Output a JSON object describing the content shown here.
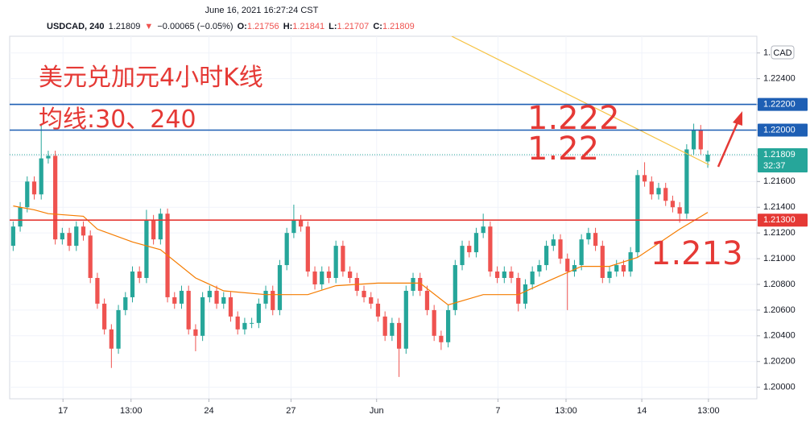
{
  "chart_data": {
    "type": "candlestick",
    "header": {
      "date": "June 16, 2021 16:27:24 CST",
      "symbol": "USDCAD, 240",
      "last": "1.21809",
      "arrow": "▼",
      "change": "−0.00065 (−0.05%)",
      "ohlc": [
        {
          "key": "O:",
          "value": "1.21756"
        },
        {
          "key": "H:",
          "value": "1.21841"
        },
        {
          "key": "L:",
          "value": "1.21707"
        },
        {
          "key": "C:",
          "value": "1.21809"
        }
      ]
    },
    "currency_button": "CAD",
    "annotations": [
      {
        "text": "美元兑加元4小时K线"
      },
      {
        "text": "均线:30、240"
      },
      {
        "text": "1.222"
      },
      {
        "text": "1.22"
      },
      {
        "text": "1.213"
      }
    ],
    "up_color": "#26a69a",
    "down_color": "#ef5350",
    "xlim": [
      -0.5,
      106
    ],
    "xticks": [
      {
        "value": 7.1,
        "label": "17"
      },
      {
        "value": 16.8,
        "label": "13:00"
      },
      {
        "value": 27.9,
        "label": "24"
      },
      {
        "value": 39.6,
        "label": "27"
      },
      {
        "value": 51.8,
        "label": "Jun"
      },
      {
        "value": 69.1,
        "label": "7"
      },
      {
        "value": 78.8,
        "label": "13:00"
      },
      {
        "value": 89.6,
        "label": "14"
      },
      {
        "value": 99.1,
        "label": "13:00"
      }
    ],
    "ylim": [
      1.1991,
      1.2273
    ],
    "yticks": [
      {
        "value": 1.2,
        "label": "1.20000"
      },
      {
        "value": 1.202,
        "label": "1.20200"
      },
      {
        "value": 1.204,
        "label": "1.20400"
      },
      {
        "value": 1.206,
        "label": "1.20600"
      },
      {
        "value": 1.208,
        "label": "1.20800"
      },
      {
        "value": 1.21,
        "label": "1.21000"
      },
      {
        "value": 1.212,
        "label": "1.21200"
      },
      {
        "value": 1.214,
        "label": "1.21400"
      },
      {
        "value": 1.216,
        "label": "1.21600"
      },
      {
        "value": 1.218,
        "label": "1.21800"
      },
      {
        "value": 1.22,
        "label": "1.22000"
      },
      {
        "value": 1.222,
        "label": "1.22200"
      },
      {
        "value": 1.224,
        "label": "1.22400"
      },
      {
        "value": 1.226,
        "label": "1.2"
      }
    ],
    "grid": true,
    "price_lines": [
      {
        "value": 1.222,
        "label": "1.22200",
        "color": "#1e5fb4",
        "style": "solid"
      },
      {
        "value": 1.22,
        "label": "1.22000",
        "color": "#1e5fb4",
        "style": "solid"
      },
      {
        "value": 1.213,
        "label": "1.21300",
        "color": "#e53935",
        "style": "solid"
      },
      {
        "value": 1.21809,
        "label": "1.21809",
        "countdown": "32:37",
        "color": "#26a69a",
        "style": "dotted"
      }
    ],
    "open": [
      1.211,
      1.2125,
      1.214,
      1.216,
      1.215,
      1.2178,
      1.218,
      1.2115,
      1.212,
      1.211,
      1.2125,
      1.2118,
      1.2085,
      1.2065,
      1.2045,
      1.203,
      1.206,
      1.207,
      1.209,
      1.2085,
      1.213,
      1.2115,
      1.2135,
      1.207,
      1.2065,
      1.2075,
      1.2045,
      1.204,
      1.207,
      1.2075,
      1.2065,
      1.207,
      1.2055,
      1.2045,
      1.205,
      1.205,
      1.2065,
      1.2075,
      1.206,
      1.2095,
      1.212,
      1.213,
      1.2125,
      1.209,
      1.208,
      1.209,
      1.2085,
      1.211,
      1.209,
      1.2085,
      1.2075,
      1.207,
      1.2065,
      1.2055,
      1.204,
      1.205,
      1.203,
      1.2075,
      1.2085,
      1.2075,
      1.206,
      1.204,
      1.2035,
      1.206,
      1.2095,
      1.211,
      1.2105,
      1.212,
      1.2125,
      1.209,
      1.2085,
      1.209,
      1.2085,
      1.2065,
      1.208,
      1.209,
      1.2095,
      1.211,
      1.2115,
      1.21,
      1.209,
      1.2095,
      1.2115,
      1.212,
      1.211,
      1.2085,
      1.209,
      1.2095,
      1.209,
      1.2105,
      1.2165,
      1.216,
      1.215,
      1.2155,
      1.2145,
      1.214,
      1.2135,
      1.2185,
      1.22,
      1.21756
    ],
    "high": [
      1.2129,
      1.2144,
      1.2164,
      1.2164,
      1.2204,
      1.2184,
      1.2184,
      1.2124,
      1.2124,
      1.2129,
      1.2129,
      1.2122,
      1.2089,
      1.2069,
      1.2049,
      1.2064,
      1.2074,
      1.2094,
      1.2094,
      1.2138,
      1.2134,
      1.2139,
      1.2139,
      1.2074,
      1.2079,
      1.2079,
      1.2049,
      1.2074,
      1.2079,
      1.2079,
      1.2074,
      1.2074,
      1.2059,
      1.2054,
      1.2054,
      1.2069,
      1.2079,
      1.2079,
      1.2099,
      1.2124,
      1.2142,
      1.2134,
      1.2129,
      1.2094,
      1.2094,
      1.2094,
      1.2114,
      1.2114,
      1.2094,
      1.2089,
      1.2079,
      1.2074,
      1.2069,
      1.2059,
      1.2054,
      1.2054,
      1.2079,
      1.2089,
      1.2089,
      1.2079,
      1.2064,
      1.2044,
      1.2064,
      1.2099,
      1.2114,
      1.2114,
      1.2124,
      1.2135,
      1.2129,
      1.2094,
      1.2094,
      1.2094,
      1.2089,
      1.2084,
      1.2094,
      1.2099,
      1.2114,
      1.2119,
      1.2119,
      1.2104,
      1.2099,
      1.2119,
      1.2124,
      1.2124,
      1.2114,
      1.2094,
      1.2099,
      1.2099,
      1.2109,
      1.2169,
      1.2175,
      1.2164,
      1.2159,
      1.2159,
      1.2149,
      1.2144,
      1.2189,
      1.2205,
      1.2204,
      1.21841
    ],
    "low": [
      1.2106,
      1.2121,
      1.2136,
      1.2146,
      1.2146,
      1.2174,
      1.2111,
      1.2111,
      1.2106,
      1.2106,
      1.2114,
      1.2081,
      1.2061,
      1.2041,
      1.2015,
      1.2026,
      1.2056,
      1.2066,
      1.2081,
      1.2081,
      1.2111,
      1.2111,
      1.2066,
      1.2061,
      1.2061,
      1.2041,
      1.2028,
      1.2036,
      1.2066,
      1.2061,
      1.2061,
      1.2051,
      1.2041,
      1.2041,
      1.2046,
      1.2046,
      1.2061,
      1.2056,
      1.2056,
      1.2091,
      1.2116,
      1.2121,
      1.2086,
      1.2076,
      1.2076,
      1.2081,
      1.2081,
      1.2086,
      1.2081,
      1.2071,
      1.2066,
      1.2061,
      1.2051,
      1.2036,
      1.2036,
      1.2008,
      1.2026,
      1.2071,
      1.2071,
      1.2056,
      1.2036,
      1.2029,
      1.2031,
      1.2056,
      1.2091,
      1.2101,
      1.2101,
      1.2116,
      1.2086,
      1.2081,
      1.2081,
      1.2081,
      1.2059,
      1.2061,
      1.2076,
      1.2086,
      1.2091,
      1.2106,
      1.2096,
      1.206,
      1.2086,
      1.2091,
      1.2111,
      1.2106,
      1.2081,
      1.2081,
      1.2086,
      1.2086,
      1.2086,
      1.2101,
      1.2156,
      1.2146,
      1.2146,
      1.2141,
      1.2136,
      1.2128,
      1.2131,
      1.2181,
      1.2181,
      1.21707
    ],
    "close": [
      1.2125,
      1.214,
      1.216,
      1.215,
      1.2178,
      1.218,
      1.2115,
      1.212,
      1.211,
      1.2125,
      1.2118,
      1.2085,
      1.2065,
      1.2045,
      1.203,
      1.206,
      1.207,
      1.209,
      1.2085,
      1.213,
      1.2115,
      1.2135,
      1.207,
      1.2065,
      1.2075,
      1.2045,
      1.204,
      1.207,
      1.2075,
      1.2065,
      1.207,
      1.2055,
      1.2045,
      1.205,
      1.205,
      1.2065,
      1.2075,
      1.206,
      1.2095,
      1.212,
      1.213,
      1.2125,
      1.209,
      1.208,
      1.209,
      1.2085,
      1.211,
      1.209,
      1.2085,
      1.2075,
      1.207,
      1.2065,
      1.2055,
      1.204,
      1.205,
      1.203,
      1.2075,
      1.2085,
      1.2075,
      1.206,
      1.204,
      1.2035,
      1.206,
      1.2095,
      1.211,
      1.2105,
      1.212,
      1.2125,
      1.209,
      1.2085,
      1.209,
      1.2085,
      1.2065,
      1.208,
      1.209,
      1.2095,
      1.211,
      1.2115,
      1.21,
      1.209,
      1.2095,
      1.2115,
      1.212,
      1.211,
      1.2085,
      1.209,
      1.2095,
      1.209,
      1.2105,
      1.2165,
      1.216,
      1.215,
      1.2155,
      1.2145,
      1.214,
      1.2135,
      1.2185,
      1.22,
      1.2185,
      1.21809
    ],
    "moving_averages": [
      {
        "color": "#f57c00",
        "x": [
          0,
          3,
          5,
          10,
          12,
          17,
          21,
          26,
          30,
          36,
          42,
          46,
          52,
          58,
          62,
          67,
          72,
          76,
          81,
          85,
          89,
          95,
          99
        ],
        "values": [
          1.2141,
          1.2138,
          1.2135,
          1.2133,
          1.2123,
          1.2113,
          1.2107,
          1.2085,
          1.2075,
          1.2072,
          1.2072,
          1.2079,
          1.2081,
          1.2081,
          1.2064,
          1.2072,
          1.2072,
          1.2082,
          1.2094,
          1.2094,
          1.2101,
          1.2123,
          1.2136
        ]
      },
      {
        "color": "#f6c343",
        "x": [
          62.5,
          99.2
        ],
        "values": [
          1.2273,
          1.2173
        ]
      }
    ]
  }
}
